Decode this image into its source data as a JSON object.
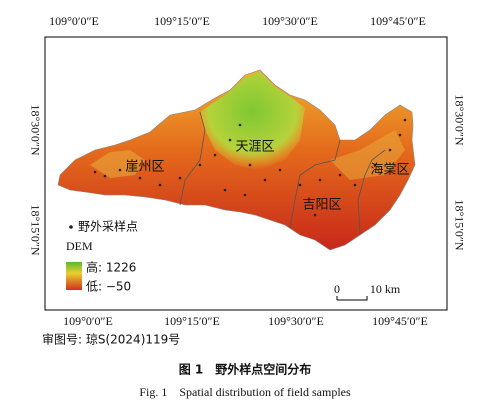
{
  "map": {
    "top_labels": [
      "109°0′0″E",
      "109°15′0″E",
      "109°30′0″E",
      "109°45′0″E"
    ],
    "bottom_labels": [
      "109°0′0″E",
      "109°15′0″E",
      "109°30′0″E",
      "109°45′0″E"
    ],
    "left_labels": [
      "18°30′0″N",
      "18°15′0″N"
    ],
    "right_labels": [
      "18°30′0″N",
      "18°15′0″N"
    ],
    "districts": [
      "崖州区",
      "天涯区",
      "吉阳区",
      "海棠区"
    ],
    "legend": {
      "points": "野外采样点",
      "dem_title": "DEM",
      "high": "高: 1226",
      "low": "低: −50"
    },
    "scale": {
      "zero": "0",
      "end": "10 km"
    }
  },
  "approval": "审图号: 琼S(2024)119号",
  "caption": {
    "cn": "图 1　野外样点空间分布",
    "en": "Fig. 1　Spatial distribution of field samples"
  }
}
